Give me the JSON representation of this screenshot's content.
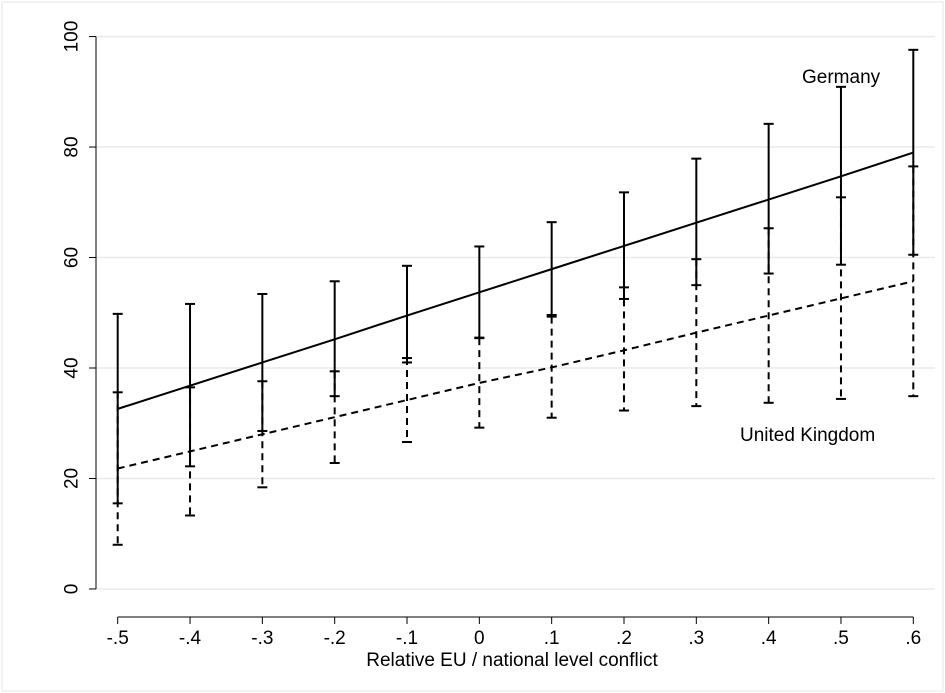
{
  "chart_data": {
    "type": "line",
    "title": "",
    "xlabel": "Relative EU / national level conflict",
    "ylabel": "",
    "x": [
      -0.5,
      -0.4,
      -0.3,
      -0.2,
      -0.1,
      0,
      0.1,
      0.2,
      0.3,
      0.4,
      0.5,
      0.6
    ],
    "x_tick_labels": [
      "-.5",
      "-.4",
      "-.3",
      "-.2",
      "-.1",
      "0",
      ".1",
      ".2",
      ".3",
      ".4",
      ".5",
      ".6"
    ],
    "y_ticks": [
      0,
      20,
      40,
      60,
      80,
      100
    ],
    "y_tick_labels": [
      "0",
      "20",
      "40",
      "60",
      "80",
      "100"
    ],
    "xlim": [
      -0.53,
      0.63
    ],
    "ylim": [
      -2,
      103
    ],
    "grid": true,
    "series": [
      {
        "name": "Germany",
        "style": "solid",
        "values": [
          32.6,
          36.8,
          41.0,
          45.2,
          49.5,
          53.7,
          57.9,
          62.1,
          66.3,
          70.5,
          74.7,
          79.0
        ],
        "lower": [
          15.5,
          22.2,
          28.6,
          34.9,
          41.0,
          45.5,
          49.6,
          52.5,
          55.0,
          57.1,
          58.7,
          60.5
        ],
        "upper": [
          49.8,
          51.6,
          53.4,
          55.7,
          58.5,
          62.0,
          66.4,
          71.8,
          77.9,
          84.2,
          90.9,
          97.6
        ]
      },
      {
        "name": "United Kingdom",
        "style": "dashed",
        "values": [
          21.8,
          24.9,
          28.0,
          31.1,
          34.2,
          37.3,
          40.1,
          43.2,
          46.4,
          49.5,
          52.6,
          55.7
        ],
        "lower": [
          8.0,
          13.3,
          18.4,
          22.8,
          26.6,
          29.2,
          31.0,
          32.3,
          33.1,
          33.7,
          34.4,
          34.9
        ],
        "upper": [
          35.6,
          36.5,
          37.6,
          39.4,
          41.8,
          45.4,
          49.3,
          54.6,
          59.7,
          65.3,
          70.9,
          76.5
        ]
      }
    ]
  },
  "colors": {
    "line": "#000000",
    "grid": "#eaeaea",
    "frame": "#e6e6e6",
    "background": "#ffffff"
  }
}
